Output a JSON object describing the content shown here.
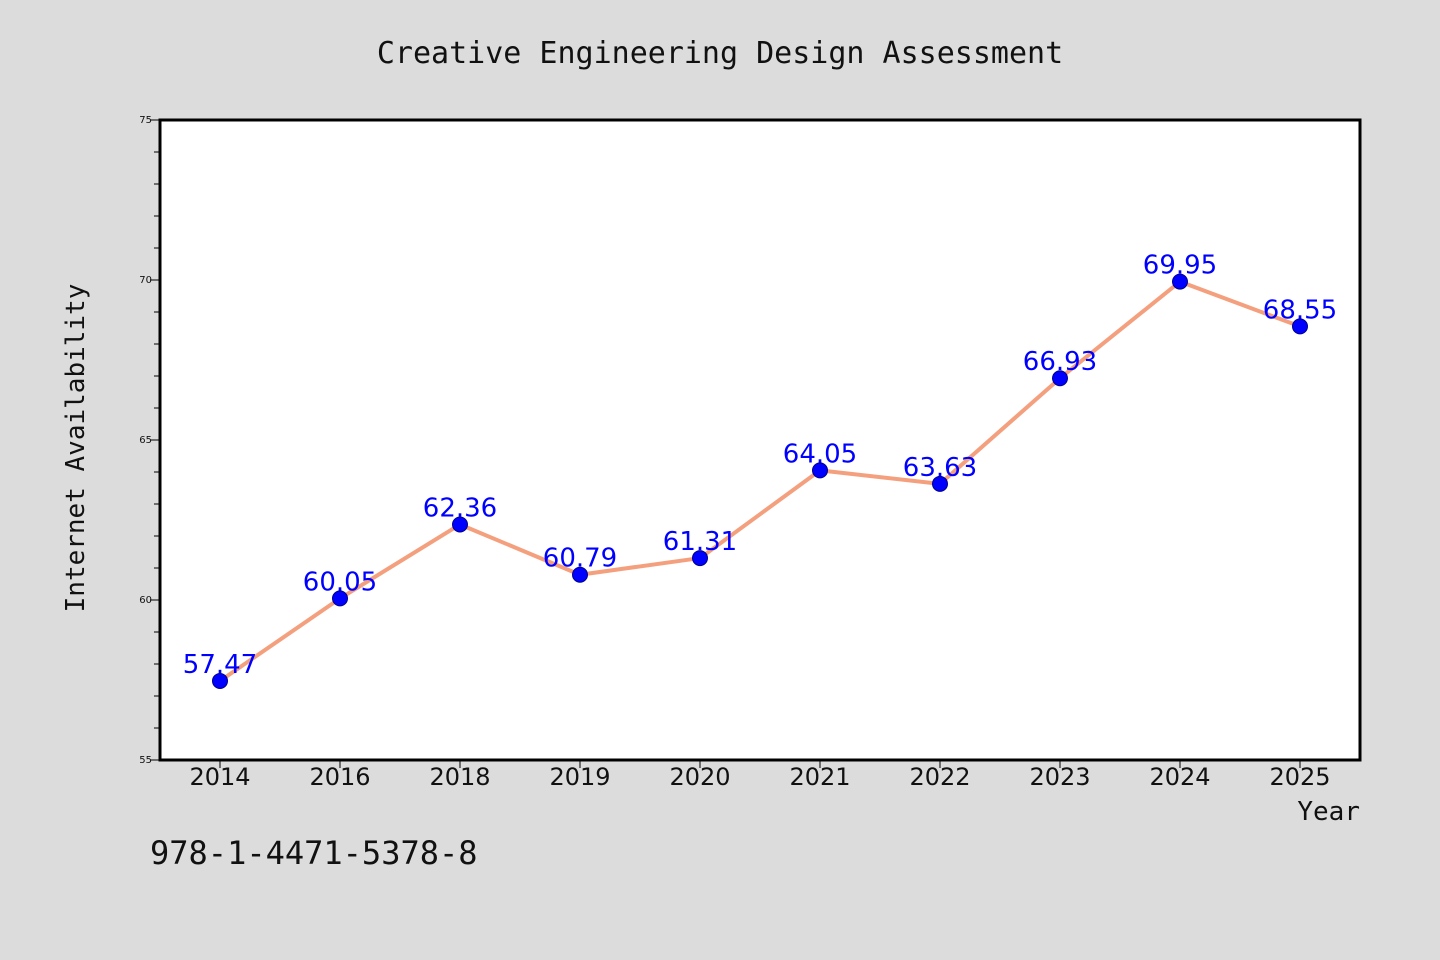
{
  "chart_data": {
    "type": "line",
    "title": "Creative Engineering Design Assessment",
    "xlabel": "Year",
    "ylabel": "Internet Availability",
    "categories": [
      "2014",
      "2016",
      "2018",
      "2019",
      "2020",
      "2021",
      "2022",
      "2023",
      "2024",
      "2025"
    ],
    "series": [
      {
        "values": [
          57.47,
          60.05,
          62.36,
          60.79,
          61.31,
          64.05,
          63.63,
          66.93,
          69.95,
          68.55
        ],
        "labels": [
          "57.47",
          "60.05",
          "62.36",
          "60.79",
          "61.31",
          "64.05",
          "63.63",
          "66.93",
          "69.95",
          "68.55"
        ],
        "line_color": "#f4a07e",
        "marker_color": "#0000ff"
      }
    ],
    "ylim": [
      55,
      75
    ],
    "yticks": [
      "55",
      "60",
      "65",
      "70",
      "75"
    ],
    "grid": false,
    "legend": "none"
  },
  "footer": {
    "text": "978-1-4471-5378-8"
  },
  "colors": {
    "background": "#dcdcdc",
    "plot_background": "#ffffff",
    "axis": "#000000"
  }
}
